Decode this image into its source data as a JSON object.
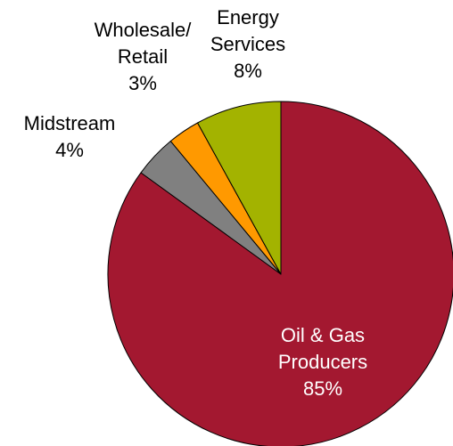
{
  "chart_data": {
    "type": "pie",
    "title": "",
    "slices": [
      {
        "label_lines": [
          "Oil & Gas",
          "Producers"
        ],
        "value": 85,
        "value_label": "85%",
        "color": "#a31830",
        "label_color": "#ffffff"
      },
      {
        "label_lines": [
          "Midstream"
        ],
        "value": 4,
        "value_label": "4%",
        "color": "#808080",
        "label_color": "#000000"
      },
      {
        "label_lines": [
          "Wholesale/",
          "Retail"
        ],
        "value": 3,
        "value_label": "3%",
        "color": "#ff9900",
        "label_color": "#000000"
      },
      {
        "label_lines": [
          "Energy",
          "Services"
        ],
        "value": 8,
        "value_label": "8%",
        "color": "#a3b300",
        "label_color": "#000000"
      }
    ]
  }
}
